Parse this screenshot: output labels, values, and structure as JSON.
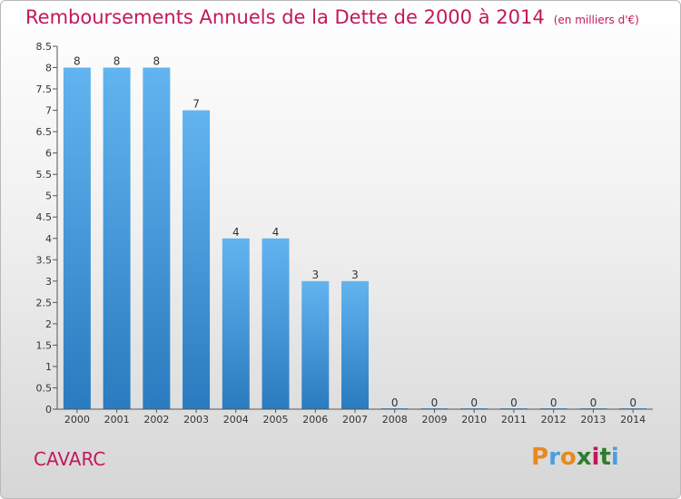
{
  "chart_data": {
    "type": "bar",
    "title": "Remboursements Annuels de la Dette de 2000 à 2014",
    "unit_note": "(en milliers d'€)",
    "categories": [
      "2000",
      "2001",
      "2002",
      "2003",
      "2004",
      "2005",
      "2006",
      "2007",
      "2008",
      "2009",
      "2010",
      "2011",
      "2012",
      "2013",
      "2014"
    ],
    "values": [
      8,
      8,
      8,
      7,
      4,
      4,
      3,
      3,
      0,
      0,
      0,
      0,
      0,
      0,
      0
    ],
    "ylim": [
      0,
      8.5
    ],
    "yticks": [
      "0",
      "0.5",
      "1",
      "1.5",
      "2",
      "2.5",
      "3",
      "3.5",
      "4",
      "4.5",
      "5",
      "5.5",
      "6",
      "6.5",
      "7",
      "7.5",
      "8",
      "8.5"
    ],
    "xlabel": "",
    "ylabel": "",
    "bar_color": "#4a9fe0"
  },
  "commune": "CAVARC",
  "logo": {
    "letters": [
      "P",
      "r",
      "o",
      "x",
      "i",
      "t",
      "i"
    ],
    "colors": [
      "#e98a1c",
      "#4a9fe0",
      "#e98a1c",
      "#2e7d32",
      "#c2185b",
      "#2e7d32",
      "#4a9fe0"
    ]
  }
}
